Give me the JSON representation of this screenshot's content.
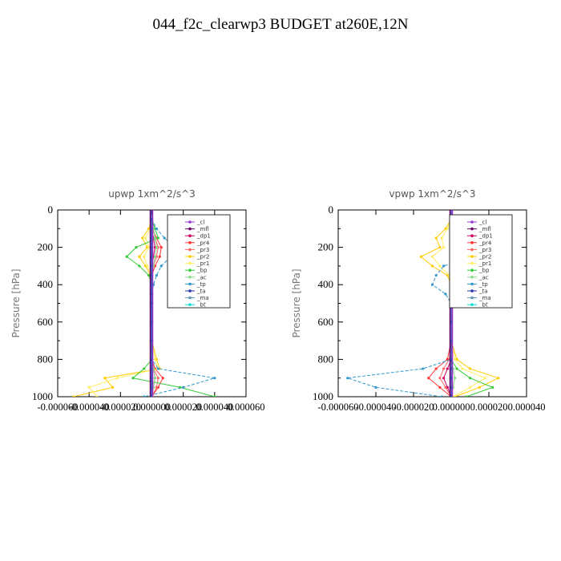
{
  "title": "044_f2c_clearwp3  BUDGET at260E,12N",
  "chart_data": [
    {
      "type": "line",
      "title": "upwp   1xm^2/s^3",
      "ylabel": "Pressure [hPa]",
      "xlim": [
        -6e-05,
        6e-05
      ],
      "ylim": [
        0,
        1000
      ],
      "y_inverted": true,
      "xticks": [
        "-0.000060",
        "-0.000040",
        "-0.000020",
        "0.000000",
        "0.000020",
        "0.000040",
        "0.000060"
      ],
      "yticks": [
        "0",
        "200",
        "400",
        "600",
        "800",
        "1000"
      ],
      "legend": "top-right",
      "levels": [
        50,
        100,
        150,
        200,
        250,
        300,
        350,
        400,
        450,
        500,
        600,
        700,
        800,
        850,
        900,
        950,
        1000
      ],
      "series": [
        {
          "name": "_cl",
          "color": "#9933cc",
          "values": [
            0,
            0,
            0,
            0,
            0,
            0,
            0,
            0,
            0,
            0,
            0,
            0,
            0,
            0,
            0,
            0,
            0
          ]
        },
        {
          "name": "_mfl",
          "color": "#660066",
          "values": [
            0,
            0,
            0,
            0,
            0,
            0,
            0,
            0,
            0,
            0,
            0,
            0,
            0,
            0,
            0,
            0,
            0
          ]
        },
        {
          "name": "_dp1",
          "color": "#cc0066",
          "values": [
            0,
            0,
            1e-06,
            2e-06,
            1e-06,
            0,
            0,
            0,
            0,
            0,
            0,
            0,
            0,
            1e-06,
            2e-06,
            1e-06,
            0
          ]
        },
        {
          "name": "_pr4",
          "color": "#ff3333",
          "values": [
            0,
            0,
            3e-06,
            6e-06,
            5e-06,
            2e-06,
            0,
            0,
            0,
            0,
            0,
            0,
            0,
            2e-06,
            7e-06,
            4e-06,
            0
          ]
        },
        {
          "name": "_pr3",
          "color": "#ff6666",
          "values": [
            0,
            1e-06,
            2e-06,
            4e-06,
            3e-06,
            1e-06,
            0,
            0,
            0,
            0,
            0,
            0,
            0,
            1e-06,
            4e-06,
            3e-06,
            0
          ]
        },
        {
          "name": "_pr2",
          "color": "#ffcc00",
          "values": [
            0,
            -2e-06,
            -6e-06,
            -3e-06,
            -8e-06,
            -4e-06,
            -1e-06,
            0,
            0,
            0,
            0,
            0,
            3e-06,
            5e-06,
            -3e-05,
            -2.5e-05,
            -5e-05
          ]
        },
        {
          "name": "_pr1",
          "color": "#ffee66",
          "values": [
            0,
            -1e-06,
            -4e-06,
            -2e-06,
            -5e-06,
            -3e-06,
            0,
            0,
            0,
            0,
            0,
            0,
            2e-06,
            4e-06,
            -2.2e-05,
            -4e-05,
            -3.5e-05
          ]
        },
        {
          "name": "_bp",
          "color": "#33cc33",
          "values": [
            0,
            2e-06,
            4e-06,
            -1e-05,
            -1.6e-05,
            -8e-06,
            -2e-06,
            0,
            0,
            0,
            0,
            0,
            0,
            -5e-06,
            -1.2e-05,
            1.8e-05,
            4e-05
          ]
        },
        {
          "name": "_ac",
          "color": "#88dd88",
          "values": [
            0,
            1e-06,
            2e-06,
            3e-06,
            2e-06,
            1e-06,
            0,
            0,
            0,
            0,
            0,
            0,
            0,
            1e-06,
            2e-06,
            1e-06,
            0
          ]
        },
        {
          "name": "_tp",
          "color": "#3399cc",
          "values": [
            0,
            3e-06,
            8e-06,
            1.5e-05,
            1.2e-05,
            6e-06,
            3e-06,
            1e-06,
            0,
            0,
            0,
            0,
            0,
            4e-06,
            4e-05,
            2e-05,
            -5e-06
          ]
        },
        {
          "name": "_ta",
          "color": "#2233aa",
          "values": [
            0,
            0,
            0,
            0,
            0,
            0,
            0,
            0,
            0,
            0,
            0,
            0,
            0,
            0,
            0,
            0,
            0
          ]
        },
        {
          "name": "_ma",
          "color": "#6699bb",
          "values": [
            0,
            0,
            0,
            0,
            0,
            0,
            0,
            0,
            0,
            0,
            0,
            0,
            0,
            0,
            0,
            0,
            0
          ]
        },
        {
          "name": "_bt",
          "color": "#00dddd",
          "values": [
            0,
            0,
            0,
            0,
            0,
            0,
            0,
            0,
            0,
            0,
            0,
            0,
            0,
            0,
            0,
            0,
            0
          ]
        }
      ]
    },
    {
      "type": "line",
      "title": "vpwp   1xm^2/s^3",
      "ylabel": "Pressure [hPa]",
      "xlim": [
        -6e-05,
        4e-05
      ],
      "ylim": [
        0,
        1000
      ],
      "y_inverted": true,
      "xticks": [
        "-0.000060",
        "-0.000040",
        "-0.000020",
        "0.000000",
        "0.000020",
        "0.000040"
      ],
      "yticks": [
        "0",
        "200",
        "400",
        "600",
        "800",
        "1000"
      ],
      "legend": "top-right",
      "levels": [
        50,
        100,
        150,
        200,
        250,
        300,
        350,
        400,
        450,
        500,
        600,
        700,
        800,
        850,
        900,
        950,
        1000
      ],
      "series": [
        {
          "name": "_cl",
          "color": "#9933cc",
          "values": [
            0,
            0,
            0,
            0,
            0,
            0,
            0,
            0,
            0,
            0,
            0,
            0,
            0,
            0,
            0,
            0,
            0
          ]
        },
        {
          "name": "_mfl",
          "color": "#660066",
          "values": [
            0,
            0,
            0,
            0,
            0,
            0,
            0,
            0,
            0,
            0,
            0,
            0,
            0,
            0,
            0,
            0,
            0
          ]
        },
        {
          "name": "_dp1",
          "color": "#cc0066",
          "values": [
            0,
            0,
            0,
            1e-06,
            1e-06,
            0,
            0,
            0,
            0,
            0,
            0,
            0,
            0,
            -2e-06,
            -4e-06,
            -2e-06,
            0
          ]
        },
        {
          "name": "_pr4",
          "color": "#ff3333",
          "values": [
            0,
            0,
            1e-06,
            2e-06,
            1e-06,
            1e-06,
            0,
            0,
            0,
            0,
            0,
            0,
            -2e-06,
            -8e-06,
            -1.2e-05,
            -6e-06,
            0
          ]
        },
        {
          "name": "_pr3",
          "color": "#ff6666",
          "values": [
            0,
            0,
            1e-06,
            1e-06,
            1e-06,
            0,
            0,
            0,
            0,
            0,
            0,
            0,
            -1e-06,
            -4e-06,
            -6e-06,
            -3e-06,
            0
          ]
        },
        {
          "name": "_pr2",
          "color": "#ffcc00",
          "values": [
            0,
            -3e-06,
            -8e-06,
            -6e-06,
            -1.6e-05,
            -1e-05,
            -2e-06,
            0,
            0,
            0,
            0,
            0,
            3e-06,
            1e-05,
            2.5e-05,
            1.5e-05,
            2e-06
          ]
        },
        {
          "name": "_pr1",
          "color": "#ffee66",
          "values": [
            0,
            -2e-06,
            -5e-06,
            -4e-06,
            -1e-05,
            -6e-06,
            -1e-06,
            0,
            0,
            0,
            0,
            0,
            2e-06,
            6e-06,
            1.8e-05,
            1e-05,
            1e-06
          ]
        },
        {
          "name": "_bp",
          "color": "#33cc33",
          "values": [
            0,
            1e-06,
            2e-06,
            3e-06,
            2e-06,
            1e-06,
            0,
            0,
            0,
            0,
            0,
            0,
            0,
            3e-06,
            1e-05,
            2.2e-05,
            8e-06
          ]
        },
        {
          "name": "_ac",
          "color": "#88dd88",
          "values": [
            0,
            0,
            1e-06,
            1e-06,
            1e-06,
            0,
            0,
            0,
            0,
            0,
            0,
            0,
            0,
            1e-06,
            2e-06,
            1e-06,
            0
          ]
        },
        {
          "name": "_tp",
          "color": "#3399cc",
          "values": [
            0,
            2e-06,
            4e-06,
            6e-06,
            1.2e-05,
            -4e-06,
            -8e-06,
            -1e-05,
            -3e-06,
            0,
            0,
            0,
            0,
            -1.5e-05,
            -5.5e-05,
            -4e-05,
            -5e-06
          ]
        },
        {
          "name": "_ta",
          "color": "#2233aa",
          "values": [
            0,
            0,
            0,
            0,
            0,
            0,
            0,
            0,
            0,
            0,
            0,
            0,
            0,
            0,
            0,
            0,
            0
          ]
        },
        {
          "name": "_ma",
          "color": "#6699bb",
          "values": [
            0,
            0,
            0,
            0,
            0,
            0,
            0,
            0,
            0,
            0,
            0,
            0,
            0,
            0,
            0,
            0,
            0
          ]
        },
        {
          "name": "_bt",
          "color": "#00dddd",
          "values": [
            0,
            0,
            0,
            0,
            0,
            0,
            0,
            0,
            0,
            0,
            0,
            0,
            0,
            0,
            0,
            0,
            0
          ]
        }
      ]
    }
  ]
}
